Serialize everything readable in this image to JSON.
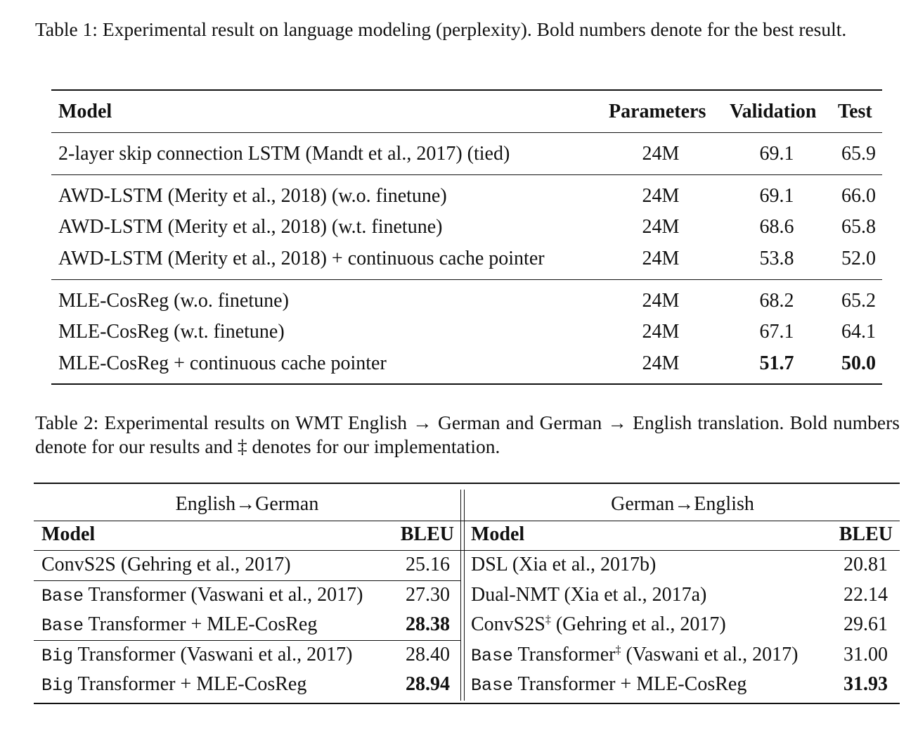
{
  "table1": {
    "caption": "Table 1: Experimental result on language modeling (perplexity). Bold numbers denote for the best result.",
    "headers": [
      "Model",
      "Parameters",
      "Validation",
      "Test"
    ],
    "rows": [
      [
        "2-layer skip connection LSTM (Mandt et al., 2017) (tied)",
        "24M",
        "69.1",
        "65.9"
      ],
      [
        "AWD-LSTM (Merity et al., 2018) (w.o. finetune)",
        "24M",
        "69.1",
        "66.0"
      ],
      [
        "AWD-LSTM (Merity et al., 2018) (w.t. finetune)",
        "24M",
        "68.6",
        "65.8"
      ],
      [
        "AWD-LSTM (Merity et al., 2018) + continuous cache pointer",
        "24M",
        "53.8",
        "52.0"
      ],
      [
        "MLE-CosReg (w.o. finetune)",
        "24M",
        "68.2",
        "65.2"
      ],
      [
        "MLE-CosReg (w.t. finetune)",
        "24M",
        "67.1",
        "64.1"
      ],
      [
        "MLE-CosReg + continuous cache pointer",
        "24M",
        "51.7",
        "50.0"
      ]
    ]
  },
  "table2": {
    "caption": "Table 2: Experimental results on WMT English → German and German → English translation. Bold numbers denote for our results and ‡ denotes for our implementation.",
    "left": {
      "title": "English→German",
      "headers": [
        "Model",
        "BLEU"
      ],
      "rows": [
        {
          "pre": "",
          "text": "ConvS2S (Gehring et al., 2017)",
          "sup": "",
          "rest": "",
          "bleu": "25.16"
        },
        {
          "pre": "Base",
          "text": " Transformer (Vaswani et al., 2017)",
          "sup": "",
          "rest": "",
          "bleu": "27.30"
        },
        {
          "pre": "Base",
          "text": " Transformer + MLE-CosReg",
          "sup": "",
          "rest": "",
          "bleu": "28.38"
        },
        {
          "pre": "Big",
          "text": " Transformer (Vaswani et al., 2017)",
          "sup": "",
          "rest": "",
          "bleu": "28.40"
        },
        {
          "pre": "Big",
          "text": " Transformer + MLE-CosReg",
          "sup": "",
          "rest": "",
          "bleu": "28.94"
        }
      ]
    },
    "right": {
      "title": "German→English",
      "headers": [
        "Model",
        "BLEU"
      ],
      "rows": [
        {
          "pre": "",
          "text": "DSL (Xia et al., 2017b)",
          "sup": "",
          "rest": "",
          "bleu": "20.81"
        },
        {
          "pre": "",
          "text": "Dual-NMT (Xia et al., 2017a)",
          "sup": "",
          "rest": "",
          "bleu": "22.14"
        },
        {
          "pre": "",
          "text": "ConvS2S",
          "sup": "‡",
          "rest": " (Gehring et al., 2017)",
          "bleu": "29.61"
        },
        {
          "pre": "Base",
          "text": " Transformer",
          "sup": "‡",
          "rest": " (Vaswani et al., 2017)",
          "bleu": "31.00"
        },
        {
          "pre": "Base",
          "text": " Transformer + MLE-CosReg",
          "sup": "",
          "rest": "",
          "bleu": "31.93"
        }
      ]
    }
  }
}
